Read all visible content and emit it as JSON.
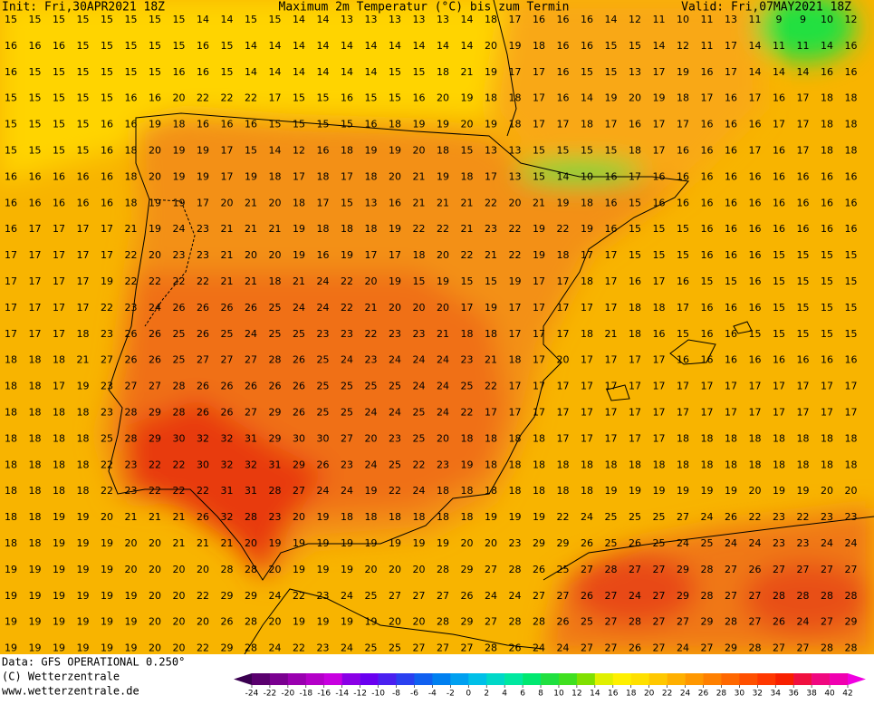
{
  "header": {
    "init": "Init: Fri,30APR2021 18Z",
    "title": "Maximum 2m Temperatur (°C) bis zum Termin",
    "valid": "Valid: Fri,07MAY2021 18Z"
  },
  "grid": {
    "rows": [
      [
        15,
        15,
        15,
        15,
        15,
        15,
        15,
        15,
        14,
        14,
        15,
        15,
        14,
        14,
        13,
        13,
        13,
        13,
        13,
        14,
        18,
        17,
        16,
        16,
        16,
        14,
        12,
        11,
        10,
        11,
        13,
        11,
        9,
        9,
        10,
        12
      ],
      [
        16,
        16,
        16,
        15,
        15,
        15,
        15,
        15,
        16,
        15,
        14,
        14,
        14,
        14,
        14,
        14,
        14,
        14,
        14,
        14,
        20,
        19,
        18,
        16,
        16,
        15,
        15,
        14,
        12,
        11,
        17,
        14,
        11,
        11,
        14,
        16
      ],
      [
        16,
        15,
        15,
        15,
        15,
        15,
        15,
        16,
        16,
        15,
        14,
        14,
        14,
        14,
        14,
        14,
        15,
        15,
        18,
        21,
        19,
        17,
        17,
        16,
        15,
        15,
        13,
        17,
        19,
        16,
        17,
        14,
        14,
        14,
        16,
        16
      ],
      [
        15,
        15,
        15,
        15,
        15,
        16,
        16,
        20,
        22,
        22,
        22,
        17,
        15,
        15,
        16,
        15,
        15,
        16,
        20,
        19,
        18,
        18,
        17,
        16,
        14,
        19,
        20,
        19,
        18,
        17,
        16,
        17,
        16,
        17,
        18,
        18
      ],
      [
        15,
        15,
        15,
        15,
        16,
        16,
        19,
        18,
        16,
        16,
        16,
        15,
        15,
        15,
        15,
        16,
        18,
        19,
        19,
        20,
        19,
        18,
        17,
        17,
        18,
        17,
        16,
        17,
        17,
        16,
        16,
        16,
        17,
        17,
        18,
        18
      ],
      [
        15,
        15,
        15,
        15,
        16,
        18,
        20,
        19,
        19,
        17,
        15,
        14,
        12,
        16,
        18,
        19,
        19,
        20,
        18,
        15,
        13,
        13,
        15,
        15,
        15,
        15,
        18,
        17,
        16,
        16,
        16,
        17,
        16,
        17,
        18,
        18
      ],
      [
        16,
        16,
        16,
        16,
        16,
        18,
        20,
        19,
        19,
        17,
        19,
        18,
        17,
        18,
        17,
        18,
        20,
        21,
        19,
        18,
        17,
        13,
        15,
        14,
        10,
        16,
        17,
        16,
        16,
        16,
        16,
        16,
        16,
        16,
        16,
        16
      ],
      [
        16,
        16,
        16,
        16,
        16,
        18,
        19,
        19,
        17,
        20,
        21,
        20,
        18,
        17,
        15,
        13,
        16,
        21,
        21,
        21,
        22,
        20,
        21,
        19,
        18,
        16,
        15,
        16,
        16,
        16,
        16,
        16,
        16,
        16,
        16,
        16
      ],
      [
        16,
        17,
        17,
        17,
        17,
        21,
        19,
        24,
        23,
        21,
        21,
        21,
        19,
        18,
        18,
        18,
        19,
        22,
        22,
        21,
        23,
        22,
        19,
        22,
        19,
        16,
        15,
        15,
        15,
        16,
        16,
        16,
        16,
        16,
        16,
        16
      ],
      [
        17,
        17,
        17,
        17,
        17,
        22,
        20,
        23,
        23,
        21,
        20,
        20,
        19,
        16,
        19,
        17,
        17,
        18,
        20,
        22,
        21,
        22,
        19,
        18,
        17,
        17,
        15,
        15,
        15,
        16,
        16,
        16,
        15,
        15,
        15,
        15
      ],
      [
        17,
        17,
        17,
        17,
        19,
        22,
        22,
        22,
        22,
        21,
        21,
        18,
        21,
        24,
        22,
        20,
        19,
        15,
        19,
        15,
        15,
        19,
        17,
        17,
        18,
        17,
        16,
        17,
        16,
        15,
        15,
        16,
        15,
        15,
        15,
        15
      ],
      [
        17,
        17,
        17,
        17,
        22,
        23,
        24,
        26,
        26,
        26,
        26,
        25,
        24,
        24,
        22,
        21,
        20,
        20,
        20,
        17,
        19,
        17,
        17,
        17,
        17,
        17,
        18,
        18,
        17,
        16,
        16,
        16,
        15,
        15,
        15,
        15
      ],
      [
        17,
        17,
        17,
        18,
        23,
        26,
        26,
        25,
        26,
        25,
        24,
        25,
        25,
        23,
        23,
        22,
        23,
        23,
        21,
        18,
        18,
        17,
        17,
        17,
        18,
        21,
        18,
        16,
        15,
        16,
        16,
        15,
        15,
        15,
        15,
        15
      ],
      [
        18,
        18,
        18,
        21,
        27,
        26,
        26,
        25,
        27,
        27,
        27,
        28,
        26,
        25,
        24,
        23,
        24,
        24,
        24,
        23,
        21,
        18,
        17,
        20,
        17,
        17,
        17,
        17,
        16,
        16,
        16,
        16,
        16,
        16,
        16,
        16
      ],
      [
        18,
        18,
        17,
        19,
        23,
        27,
        27,
        28,
        26,
        26,
        26,
        26,
        26,
        25,
        25,
        25,
        25,
        24,
        24,
        25,
        22,
        17,
        17,
        17,
        17,
        17,
        17,
        17,
        17,
        17,
        17,
        17,
        17,
        17,
        17,
        17
      ],
      [
        18,
        18,
        18,
        18,
        23,
        28,
        29,
        28,
        26,
        26,
        27,
        29,
        26,
        25,
        25,
        24,
        24,
        25,
        24,
        22,
        17,
        17,
        17,
        17,
        17,
        17,
        17,
        17,
        17,
        17,
        17,
        17,
        17,
        17,
        17,
        17
      ],
      [
        18,
        18,
        18,
        18,
        25,
        28,
        29,
        30,
        32,
        32,
        31,
        29,
        30,
        30,
        27,
        20,
        23,
        25,
        20,
        18,
        18,
        18,
        18,
        17,
        17,
        17,
        17,
        17,
        18,
        18,
        18,
        18,
        18,
        18,
        18,
        18
      ],
      [
        18,
        18,
        18,
        18,
        22,
        23,
        22,
        22,
        30,
        32,
        32,
        31,
        29,
        26,
        23,
        24,
        25,
        22,
        23,
        19,
        18,
        18,
        18,
        18,
        18,
        18,
        18,
        18,
        18,
        18,
        18,
        18,
        18,
        18,
        18,
        18
      ],
      [
        18,
        18,
        18,
        18,
        22,
        23,
        22,
        22,
        22,
        31,
        31,
        28,
        27,
        24,
        24,
        19,
        22,
        24,
        18,
        18,
        18,
        18,
        18,
        18,
        18,
        19,
        19,
        19,
        19,
        19,
        19,
        20,
        19,
        19,
        20,
        20
      ],
      [
        18,
        18,
        19,
        19,
        20,
        21,
        21,
        21,
        26,
        32,
        28,
        23,
        20,
        19,
        18,
        18,
        18,
        18,
        18,
        18,
        19,
        19,
        19,
        22,
        24,
        25,
        25,
        25,
        27,
        24,
        26,
        22,
        23,
        22,
        23,
        23
      ],
      [
        18,
        18,
        19,
        19,
        19,
        20,
        20,
        21,
        21,
        21,
        20,
        19,
        19,
        19,
        19,
        19,
        19,
        19,
        19,
        20,
        20,
        23,
        29,
        29,
        26,
        25,
        26,
        25,
        24,
        25,
        24,
        24,
        23,
        23,
        24,
        24
      ],
      [
        19,
        19,
        19,
        19,
        19,
        20,
        20,
        20,
        20,
        28,
        28,
        20,
        19,
        19,
        19,
        20,
        20,
        20,
        28,
        29,
        27,
        28,
        26,
        25,
        27,
        28,
        27,
        27,
        29,
        28,
        27,
        26,
        27,
        27,
        27,
        27
      ],
      [
        19,
        19,
        19,
        19,
        19,
        19,
        20,
        20,
        22,
        29,
        29,
        24,
        22,
        23,
        24,
        25,
        27,
        27,
        27,
        26,
        24,
        24,
        27,
        27,
        26,
        27,
        24,
        27,
        29,
        28,
        27,
        27,
        28,
        28,
        28,
        28
      ],
      [
        19,
        19,
        19,
        19,
        19,
        19,
        20,
        20,
        20,
        26,
        28,
        20,
        19,
        19,
        19,
        19,
        20,
        20,
        28,
        29,
        27,
        28,
        28,
        26,
        25,
        27,
        28,
        27,
        27,
        29,
        28,
        27,
        26,
        24,
        27,
        29
      ],
      [
        19,
        19,
        19,
        19,
        19,
        19,
        20,
        20,
        22,
        29,
        28,
        24,
        22,
        23,
        24,
        25,
        25,
        27,
        27,
        27,
        28,
        26,
        24,
        24,
        27,
        27,
        26,
        27,
        24,
        27,
        29,
        28,
        27,
        27,
        28,
        28
      ]
    ]
  },
  "colorbar": {
    "ticks": [
      -24,
      -22,
      -20,
      -18,
      -16,
      -14,
      -12,
      -10,
      -8,
      -6,
      -4,
      -2,
      0,
      2,
      4,
      6,
      8,
      10,
      12,
      14,
      16,
      18,
      20,
      22,
      24,
      26,
      28,
      30,
      32,
      34,
      36,
      38,
      40,
      42
    ],
    "colors": [
      "#3a0050",
      "#5a006e",
      "#7a0090",
      "#9a00b0",
      "#b400c8",
      "#c800e0",
      "#8a00e6",
      "#6a00f0",
      "#4a20f0",
      "#2a40f0",
      "#1060f0",
      "#0080f0",
      "#00a0f0",
      "#00c0e8",
      "#00d8c8",
      "#00e8a0",
      "#00e870",
      "#20e040",
      "#40e020",
      "#80e000",
      "#e0f000",
      "#fff000",
      "#ffe000",
      "#ffc800",
      "#ffb000",
      "#ff9800",
      "#ff8000",
      "#ff6800",
      "#ff5000",
      "#ff3800",
      "#f82000",
      "#f01040",
      "#f00880",
      "#f000b0",
      "#f000e0"
    ]
  },
  "footer": {
    "data": "Data: GFS OPERATIONAL 0.250°",
    "copyright": "(C) Wetterzentrale",
    "url": "www.wetterzentrale.de"
  }
}
